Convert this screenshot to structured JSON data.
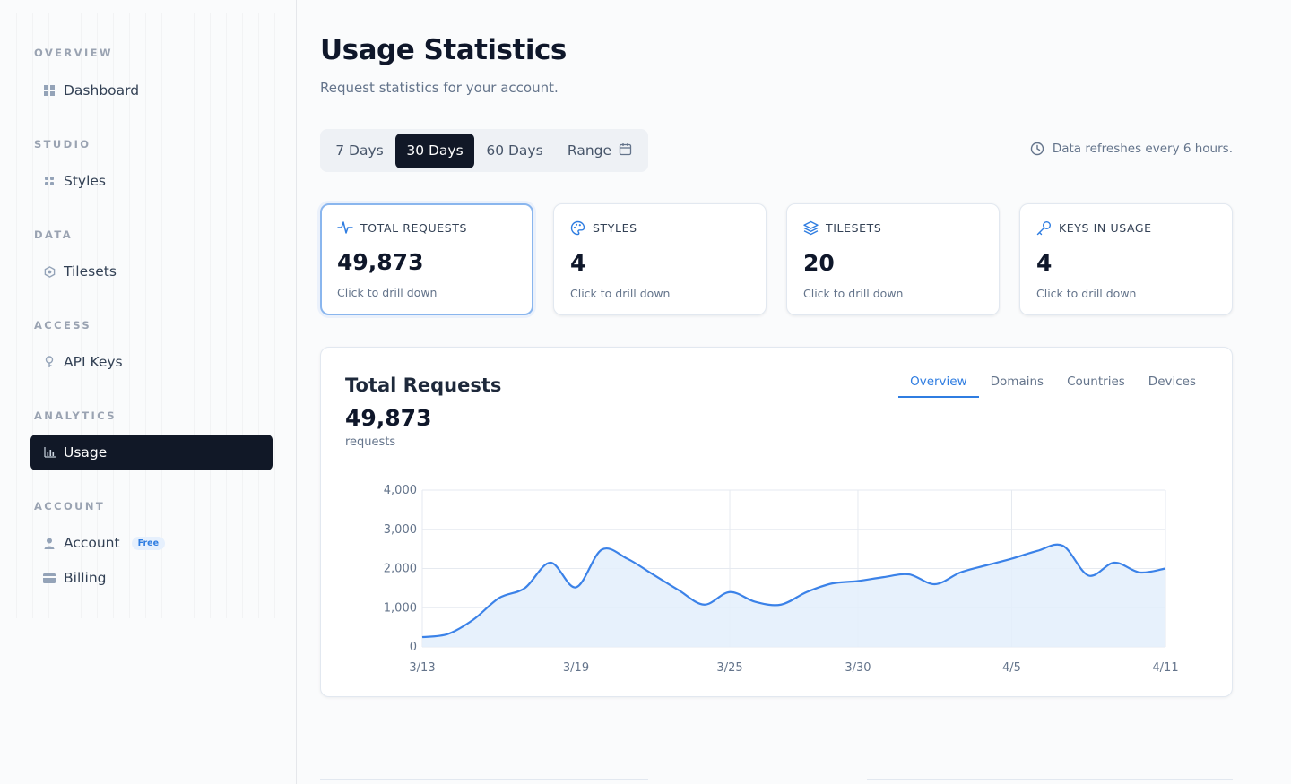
{
  "sidebar": {
    "sections": [
      {
        "label": "OVERVIEW",
        "items": [
          {
            "label": "Dashboard",
            "icon": "grid-icon"
          }
        ]
      },
      {
        "label": "STUDIO",
        "items": [
          {
            "label": "Styles",
            "icon": "dots-grid-icon"
          }
        ]
      },
      {
        "label": "DATA",
        "items": [
          {
            "label": "Tilesets",
            "icon": "hexagon-icon"
          }
        ]
      },
      {
        "label": "ACCESS",
        "items": [
          {
            "label": "API Keys",
            "icon": "key-icon"
          }
        ]
      },
      {
        "label": "ANALYTICS",
        "items": [
          {
            "label": "Usage",
            "icon": "bar-chart-icon",
            "active": true
          }
        ]
      },
      {
        "label": "ACCOUNT",
        "items": [
          {
            "label": "Account",
            "icon": "user-icon",
            "badge": "Free"
          },
          {
            "label": "Billing",
            "icon": "card-icon"
          }
        ]
      }
    ]
  },
  "header": {
    "title": "Usage Statistics",
    "subtitle": "Request statistics for your account."
  },
  "range": {
    "options": [
      "7 Days",
      "30 Days",
      "60 Days",
      "Range"
    ],
    "selected": "30 Days",
    "refresh_note": "Data refreshes every 6 hours."
  },
  "stats": [
    {
      "label": "TOTAL REQUESTS",
      "value": "49,873",
      "hint": "Click to drill down",
      "icon": "activity-icon",
      "selected": true
    },
    {
      "label": "STYLES",
      "value": "4",
      "hint": "Click to drill down",
      "icon": "palette-icon"
    },
    {
      "label": "TILESETS",
      "value": "20",
      "hint": "Click to drill down",
      "icon": "layers-icon"
    },
    {
      "label": "KEYS IN USAGE",
      "value": "4",
      "hint": "Click to drill down",
      "icon": "key-icon"
    }
  ],
  "chart_panel": {
    "title": "Total Requests",
    "total": "49,873",
    "unit": "requests",
    "tabs": [
      "Overview",
      "Domains",
      "Countries",
      "Devices"
    ],
    "active_tab": "Overview"
  },
  "colors": {
    "accent": "#2f7de1",
    "line": "#3b82e8",
    "area": "#e3eefc",
    "active_nav": "#111827"
  },
  "chart_data": {
    "type": "area",
    "title": "",
    "xlabel": "",
    "ylabel": "",
    "ylim": [
      0,
      4000
    ],
    "y_ticks": [
      0,
      1000,
      2000,
      3000,
      4000
    ],
    "y_tick_labels": [
      "0",
      "1,000",
      "2,000",
      "3,000",
      "4,000"
    ],
    "x_tick_labels": [
      "3/13",
      "3/19",
      "3/25",
      "3/30",
      "4/5",
      "4/11"
    ],
    "x_tick_positions": [
      0,
      6,
      12,
      17,
      23,
      29
    ],
    "grid": true,
    "series": [
      {
        "values": [
          250,
          330,
          700,
          1250,
          1500,
          2150,
          1520,
          2480,
          2250,
          1850,
          1450,
          1080,
          1400,
          1150,
          1080,
          1400,
          1620,
          1680,
          1780,
          1850,
          1600,
          1900,
          2080,
          2250,
          2450,
          2580,
          1820,
          2150,
          1900,
          2000
        ]
      }
    ]
  }
}
